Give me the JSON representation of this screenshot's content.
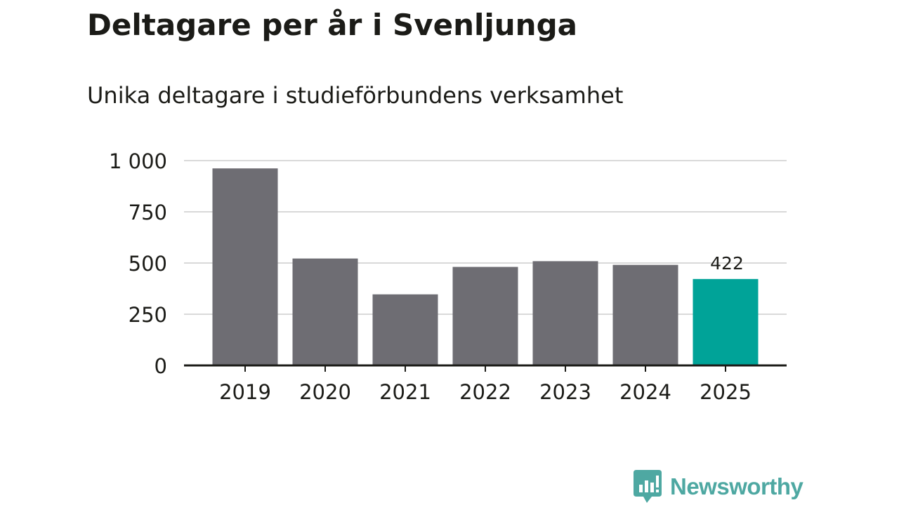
{
  "header": {
    "title": "Deltagare per år i Svenljunga",
    "subtitle": "Unika deltagare i studieförbundens verksamhet"
  },
  "brand": {
    "name": "Newsworthy",
    "color": "#4ea8a2",
    "icon": "chart-speech-bubble-icon"
  },
  "colors": {
    "bar": "#6e6d73",
    "highlight": "#00a398",
    "grid": "#d9d9d9",
    "axis": "#1b1b17",
    "text": "#1b1b17"
  },
  "chart_data": {
    "type": "bar",
    "categories": [
      "2019",
      "2020",
      "2021",
      "2022",
      "2023",
      "2024",
      "2025"
    ],
    "values": [
      962,
      522,
      347,
      481,
      509,
      491,
      422
    ],
    "highlight_index": 6,
    "data_labels": [
      {
        "index": 6,
        "text": "422"
      }
    ],
    "title": "Deltagare per år i Svenljunga",
    "subtitle": "Unika deltagare i studieförbundens verksamhet",
    "xlabel": "",
    "ylabel": "",
    "ylim": [
      0,
      1000
    ],
    "yticks": [
      0,
      250,
      500,
      750,
      1000
    ],
    "ytick_labels": [
      "0",
      "250",
      "500",
      "750",
      "1 000"
    ],
    "grid": true,
    "legend": "none"
  }
}
